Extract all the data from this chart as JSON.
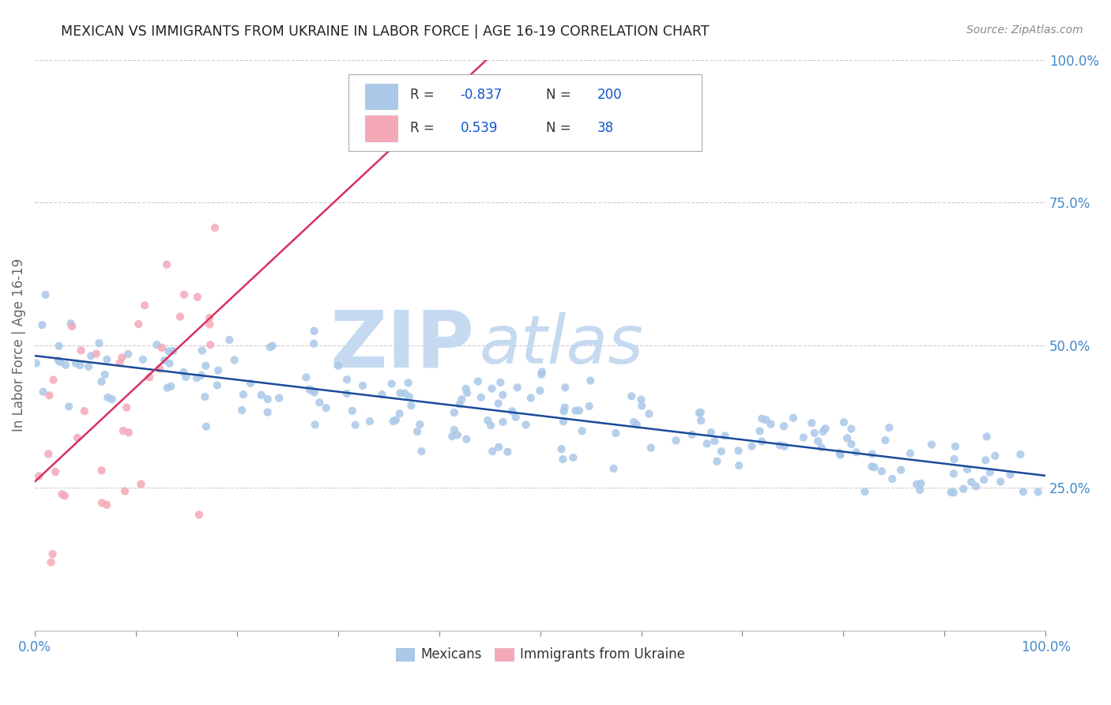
{
  "title": "MEXICAN VS IMMIGRANTS FROM UKRAINE IN LABOR FORCE | AGE 16-19 CORRELATION CHART",
  "source": "Source: ZipAtlas.com",
  "ylabel": "In Labor Force | Age 16-19",
  "blue_R": -0.837,
  "blue_N": 200,
  "pink_R": 0.539,
  "pink_N": 38,
  "blue_scatter_color": "#aac8e8",
  "pink_scatter_color": "#f4a8b8",
  "blue_line_color": "#1a4a9a",
  "pink_line_color": "#d83060",
  "title_color": "#222222",
  "axis_label_color": "#666666",
  "tick_label_color": "#4488cc",
  "grid_color": "#cccccc",
  "background_color": "#ffffff",
  "watermark_zip_color": "#c5daf0",
  "watermark_atlas_color": "#c5daf0",
  "legend_blue_label": "Mexicans",
  "legend_pink_label": "Immigrants from Ukraine",
  "seed": 7
}
